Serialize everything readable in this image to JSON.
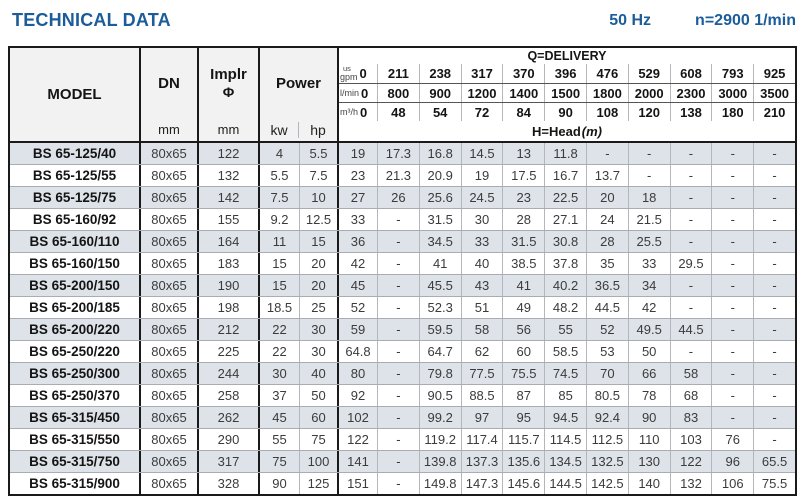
{
  "header": {
    "title": "TECHNICAL DATA",
    "frequency": "50 Hz",
    "speed": "n=2900 1/min"
  },
  "table": {
    "model_label": "MODEL",
    "dn_label": "DN",
    "dn_unit": "mm",
    "implr_label1": "Implr",
    "implr_label2": "Φ",
    "implr_unit": "mm",
    "power_label": "Power",
    "kw_label": "kw",
    "hp_label": "hp",
    "delivery_label": "Q=DELIVERY",
    "head_label": "H=Head",
    "head_unit": "(m)",
    "units": [
      {
        "sup": "us",
        "label": "gpm",
        "values": [
          "0",
          "211",
          "238",
          "317",
          "370",
          "396",
          "476",
          "529",
          "608",
          "793",
          "925"
        ]
      },
      {
        "sup": "",
        "label": "l/min",
        "values": [
          "0",
          "800",
          "900",
          "1200",
          "1400",
          "1500",
          "1800",
          "2000",
          "2300",
          "3000",
          "3500"
        ]
      },
      {
        "sup": "",
        "label": "m³/h",
        "values": [
          "0",
          "48",
          "54",
          "72",
          "84",
          "90",
          "108",
          "120",
          "138",
          "180",
          "210"
        ]
      }
    ],
    "rows": [
      {
        "model": "BS 65-125/40",
        "dn": "80x65",
        "implr": "122",
        "kw": "4",
        "hp": "5.5",
        "head": [
          "19",
          "17.3",
          "16.8",
          "14.5",
          "13",
          "11.8",
          "-",
          "-",
          "-",
          "-",
          "-"
        ]
      },
      {
        "model": "BS 65-125/55",
        "dn": "80x65",
        "implr": "132",
        "kw": "5.5",
        "hp": "7.5",
        "head": [
          "23",
          "21.3",
          "20.9",
          "19",
          "17.5",
          "16.7",
          "13.7",
          "-",
          "-",
          "-",
          "-"
        ]
      },
      {
        "model": "BS 65-125/75",
        "dn": "80x65",
        "implr": "142",
        "kw": "7.5",
        "hp": "10",
        "head": [
          "27",
          "26",
          "25.6",
          "24.5",
          "23",
          "22.5",
          "20",
          "18",
          "-",
          "-",
          "-"
        ]
      },
      {
        "model": "BS 65-160/92",
        "dn": "80x65",
        "implr": "155",
        "kw": "9.2",
        "hp": "12.5",
        "head": [
          "33",
          "-",
          "31.5",
          "30",
          "28",
          "27.1",
          "24",
          "21.5",
          "-",
          "-",
          "-"
        ]
      },
      {
        "model": "BS 65-160/110",
        "dn": "80x65",
        "implr": "164",
        "kw": "11",
        "hp": "15",
        "head": [
          "36",
          "-",
          "34.5",
          "33",
          "31.5",
          "30.8",
          "28",
          "25.5",
          "-",
          "-",
          "-"
        ]
      },
      {
        "model": "BS 65-160/150",
        "dn": "80x65",
        "implr": "183",
        "kw": "15",
        "hp": "20",
        "head": [
          "42",
          "-",
          "41",
          "40",
          "38.5",
          "37.8",
          "35",
          "33",
          "29.5",
          "-",
          "-"
        ]
      },
      {
        "model": "BS 65-200/150",
        "dn": "80x65",
        "implr": "190",
        "kw": "15",
        "hp": "20",
        "head": [
          "45",
          "-",
          "45.5",
          "43",
          "41",
          "40.2",
          "36.5",
          "34",
          "-",
          "-",
          "-"
        ]
      },
      {
        "model": "BS 65-200/185",
        "dn": "80x65",
        "implr": "198",
        "kw": "18.5",
        "hp": "25",
        "head": [
          "52",
          "-",
          "52.3",
          "51",
          "49",
          "48.2",
          "44.5",
          "42",
          "-",
          "-",
          "-"
        ]
      },
      {
        "model": "BS 65-200/220",
        "dn": "80x65",
        "implr": "212",
        "kw": "22",
        "hp": "30",
        "head": [
          "59",
          "-",
          "59.5",
          "58",
          "56",
          "55",
          "52",
          "49.5",
          "44.5",
          "-",
          "-"
        ]
      },
      {
        "model": "BS 65-250/220",
        "dn": "80x65",
        "implr": "225",
        "kw": "22",
        "hp": "30",
        "head": [
          "64.8",
          "-",
          "64.7",
          "62",
          "60",
          "58.5",
          "53",
          "50",
          "-",
          "-",
          "-"
        ]
      },
      {
        "model": "BS 65-250/300",
        "dn": "80x65",
        "implr": "244",
        "kw": "30",
        "hp": "40",
        "head": [
          "80",
          "-",
          "79.8",
          "77.5",
          "75.5",
          "74.5",
          "70",
          "66",
          "58",
          "-",
          "-"
        ]
      },
      {
        "model": "BS 65-250/370",
        "dn": "80x65",
        "implr": "258",
        "kw": "37",
        "hp": "50",
        "head": [
          "92",
          "-",
          "90.5",
          "88.5",
          "87",
          "85",
          "80.5",
          "78",
          "68",
          "-",
          "-"
        ]
      },
      {
        "model": "BS 65-315/450",
        "dn": "80x65",
        "implr": "262",
        "kw": "45",
        "hp": "60",
        "head": [
          "102",
          "-",
          "99.2",
          "97",
          "95",
          "94.5",
          "92.4",
          "90",
          "83",
          "-",
          "-"
        ]
      },
      {
        "model": "BS 65-315/550",
        "dn": "80x65",
        "implr": "290",
        "kw": "55",
        "hp": "75",
        "head": [
          "122",
          "-",
          "119.2",
          "117.4",
          "115.7",
          "114.5",
          "112.5",
          "110",
          "103",
          "76",
          "-"
        ]
      },
      {
        "model": "BS 65-315/750",
        "dn": "80x65",
        "implr": "317",
        "kw": "75",
        "hp": "100",
        "head": [
          "141",
          "-",
          "139.8",
          "137.3",
          "135.6",
          "134.5",
          "132.5",
          "130",
          "122",
          "96",
          "65.5"
        ]
      },
      {
        "model": "BS 65-315/900",
        "dn": "80x65",
        "implr": "328",
        "kw": "90",
        "hp": "125",
        "head": [
          "151",
          "-",
          "149.8",
          "147.3",
          "145.6",
          "144.5",
          "142.5",
          "140",
          "132",
          "106",
          "75.5"
        ]
      }
    ]
  }
}
